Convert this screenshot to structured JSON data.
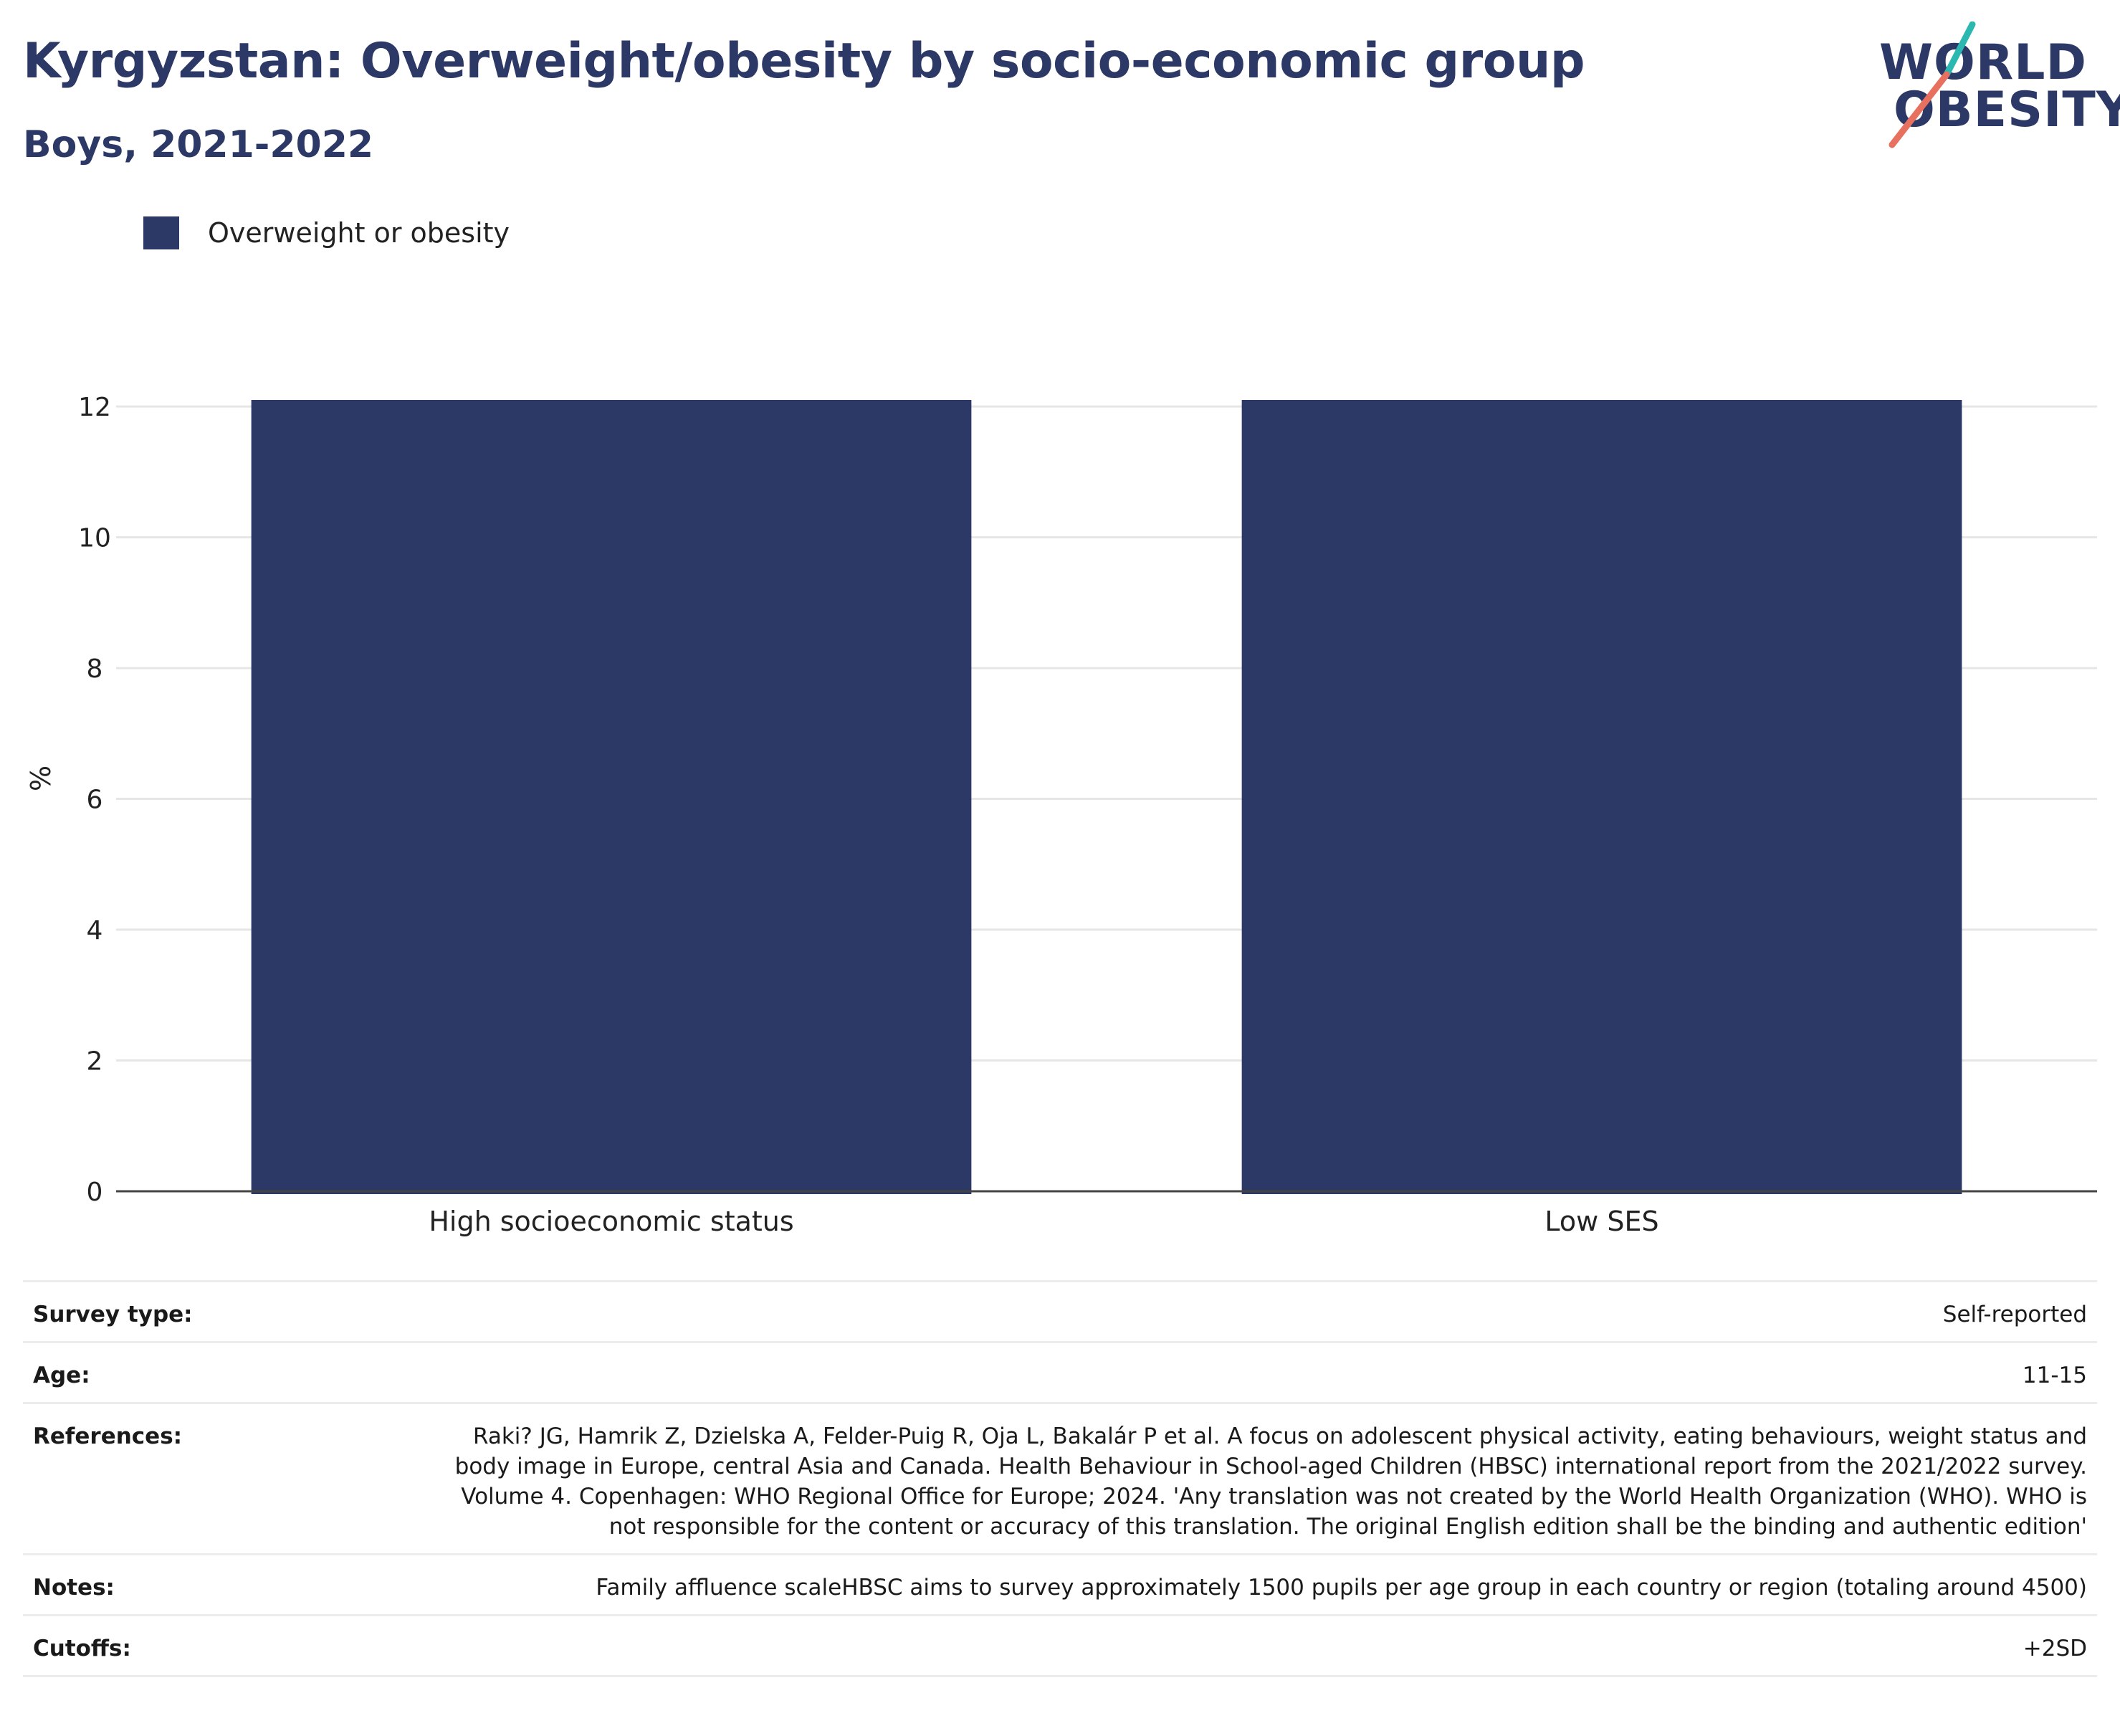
{
  "title": "Kyrgyzstan: Overweight/obesity by socio-economic group",
  "subtitle": "Boys, 2021-2022",
  "logo": {
    "line1": "WORLD",
    "line2": "OBESITY",
    "colors": {
      "text": "#2c3865",
      "slash_top": "#2bb8b0",
      "slash_bottom": "#e8705f"
    }
  },
  "legend": {
    "items": [
      {
        "label": "Overweight or obesity",
        "color": "#2c3865"
      }
    ],
    "position": "top-left"
  },
  "chart_data": {
    "type": "bar",
    "categories": [
      "High socioeconomic status",
      "Low SES"
    ],
    "series": [
      {
        "name": "Overweight or obesity",
        "values": [
          12.1,
          12.1
        ],
        "color": "#2c3865"
      }
    ],
    "ylabel": "%",
    "xlabel": "",
    "ylim": [
      0,
      12.1
    ],
    "yticks": [
      0,
      2,
      4,
      6,
      8,
      10,
      12
    ],
    "grid": true
  },
  "meta": [
    {
      "key": "Survey type:",
      "value": "Self-reported"
    },
    {
      "key": "Age:",
      "value": "11-15"
    },
    {
      "key": "References:",
      "value": "Raki? JG, Hamrik Z, Dzielska A, Felder-Puig R, Oja L, Bakalár P et al. A focus on adolescent physical activity, eating behaviours, weight status and body image in Europe, central Asia and Canada. Health Behaviour in School-aged Children (HBSC) international report from the 2021/2022 survey. Volume 4. Copenhagen: WHO Regional Office for Europe; 2024. 'Any translation was not created by the World Health Organization (WHO). WHO is not responsible for the content or accuracy of this translation. The original English edition shall be the binding and authentic edition'"
    },
    {
      "key": "Notes:",
      "value": "Family affluence scaleHBSC aims to survey approximately 1500 pupils per age group in each country or region (totaling around 4500)"
    },
    {
      "key": "Cutoffs:",
      "value": "+2SD"
    }
  ]
}
